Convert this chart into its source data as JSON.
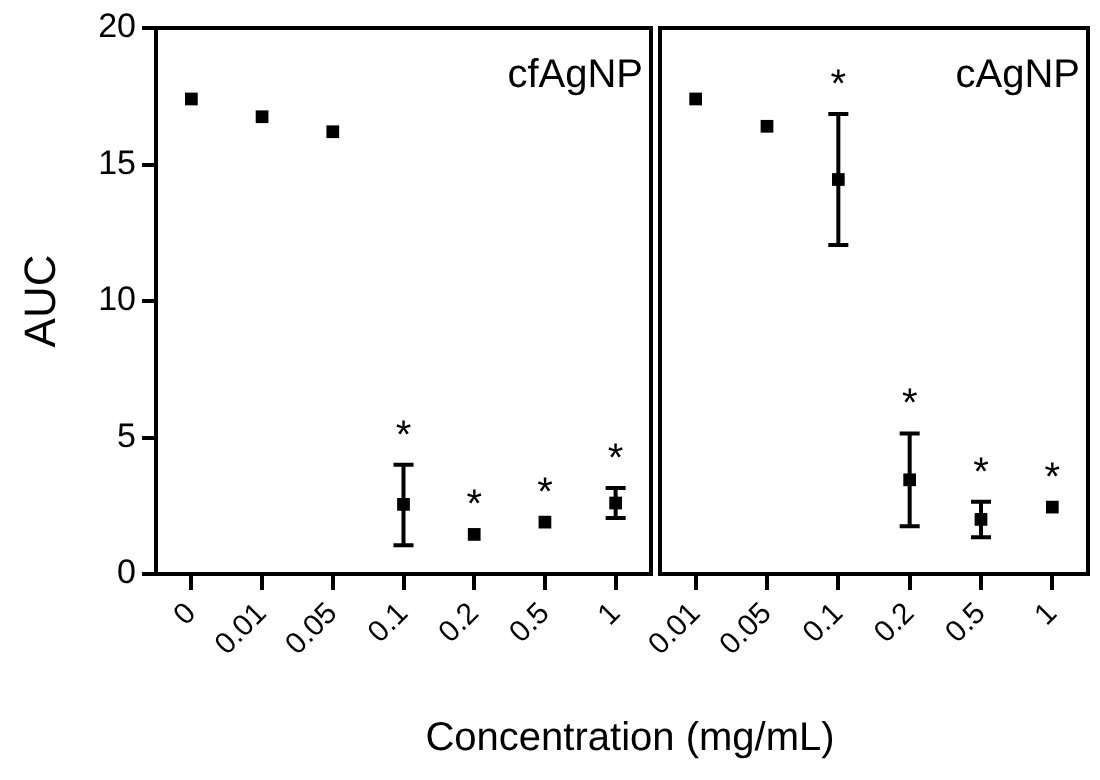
{
  "chart_data": [
    {
      "type": "scatter",
      "title": "cfAgNP",
      "ylabel": "AUC",
      "xlabel": "Concentration (mg/mL)",
      "categories": [
        "0",
        "0.01",
        "0.05",
        "0.1",
        "0.2",
        "0.5",
        "1"
      ],
      "values": [
        17.4,
        16.75,
        16.2,
        2.55,
        1.45,
        1.9,
        2.6
      ],
      "errors": [
        null,
        null,
        null,
        [
          1.05,
          4.0
        ],
        null,
        null,
        [
          2.05,
          3.15
        ]
      ],
      "color": "#000000",
      "marker": "square",
      "ylim": [
        0,
        20
      ],
      "yticks": [
        0,
        5,
        10,
        15,
        20
      ],
      "annotations": [
        {
          "text": "*",
          "x": "0.1",
          "y": 2.55
        },
        {
          "text": "*",
          "x": "0.2",
          "y": 1.45
        },
        {
          "text": "*",
          "x": "0.5",
          "y": 1.9
        },
        {
          "text": "*",
          "x": "1",
          "y": 2.6
        }
      ]
    },
    {
      "type": "scatter",
      "title": "cAgNP",
      "categories": [
        "0.01",
        "0.05",
        "0.1",
        "0.2",
        "0.5",
        "1"
      ],
      "values": [
        17.4,
        16.4,
        14.45,
        3.45,
        2.0,
        2.45
      ],
      "errors": [
        null,
        null,
        [
          12.05,
          16.85
        ],
        [
          1.75,
          5.15
        ],
        [
          1.35,
          2.65
        ],
        null
      ],
      "color": "#000000",
      "marker": "square",
      "ylim": [
        0,
        20
      ],
      "yticks": [
        0,
        5,
        10,
        15,
        20
      ],
      "tick_labels": "x",
      "annotations": [
        {
          "text": "*",
          "x": "0.1",
          "y": 14.45
        },
        {
          "text": "*",
          "x": "0.2",
          "y": 3.45
        },
        {
          "text": "*",
          "x": "0.5",
          "y": 2.0
        },
        {
          "text": "*",
          "x": "1",
          "y": 2.45
        }
      ]
    }
  ]
}
